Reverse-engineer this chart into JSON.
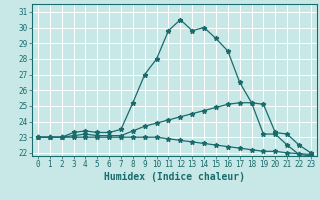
{
  "title": "",
  "xlabel": "Humidex (Indice chaleur)",
  "ylabel": "",
  "background_color": "#c8e8e8",
  "grid_color": "#ffffff",
  "line_color": "#1a6b6b",
  "xlim": [
    -0.5,
    23.5
  ],
  "ylim": [
    21.8,
    31.5
  ],
  "xticks": [
    0,
    1,
    2,
    3,
    4,
    5,
    6,
    7,
    8,
    9,
    10,
    11,
    12,
    13,
    14,
    15,
    16,
    17,
    18,
    19,
    20,
    21,
    22,
    23
  ],
  "yticks": [
    22,
    23,
    24,
    25,
    26,
    27,
    28,
    29,
    30,
    31
  ],
  "series": {
    "max": [
      23.0,
      23.0,
      23.0,
      23.3,
      23.4,
      23.3,
      23.3,
      23.5,
      25.2,
      27.0,
      28.0,
      29.8,
      30.5,
      29.8,
      30.0,
      29.3,
      28.5,
      26.5,
      25.2,
      23.2,
      23.2,
      22.5,
      21.9,
      21.8
    ],
    "avg": [
      23.0,
      23.0,
      23.0,
      23.1,
      23.2,
      23.1,
      23.1,
      23.1,
      23.4,
      23.7,
      23.9,
      24.1,
      24.3,
      24.5,
      24.7,
      24.9,
      25.1,
      25.2,
      25.2,
      25.1,
      23.3,
      23.2,
      22.5,
      22.0
    ],
    "min": [
      23.0,
      23.0,
      23.0,
      23.0,
      23.0,
      23.0,
      23.0,
      23.0,
      23.0,
      23.0,
      23.0,
      22.9,
      22.8,
      22.7,
      22.6,
      22.5,
      22.4,
      22.3,
      22.2,
      22.1,
      22.1,
      22.0,
      21.95,
      21.9
    ]
  },
  "marker": "*",
  "markersize": 3.5,
  "linewidth": 0.9,
  "tick_fontsize": 5.5,
  "xlabel_fontsize": 7
}
